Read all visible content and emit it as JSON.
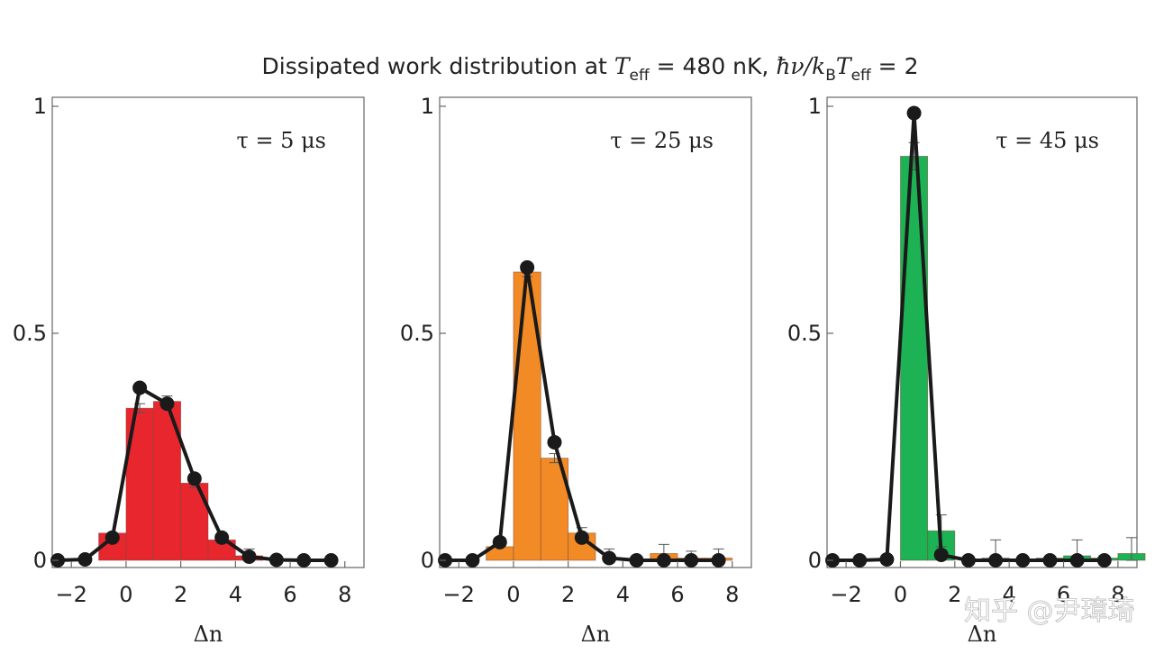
{
  "title": {
    "prefix": "Dissipated work distribution at ",
    "t_symbol": "T",
    "eff": "eff",
    "mid": " = 480 nK, ",
    "hbar_nu": "ħν/",
    "k_symbol": "k",
    "b_sub": "B",
    "t2_symbol": "T",
    "eff2": "eff",
    "suffix": " = 2"
  },
  "watermark": "知乎 @尹璋琦",
  "chart_data": [
    {
      "type": "bar",
      "panel_label": "τ = 5 μs",
      "bar_color": "#e8262e",
      "xlabel": "Δn",
      "xticks": [
        "−2",
        "0",
        "2",
        "4",
        "6",
        "8"
      ],
      "yticks": [
        "0",
        "0.5",
        "1"
      ],
      "xlim": [
        -2.7,
        8.7
      ],
      "ylim": [
        0,
        1
      ],
      "bars": [
        {
          "x": 0,
          "value": 0.06,
          "err": 0.0
        },
        {
          "x": 1,
          "value": 0.335,
          "err": 0.01
        },
        {
          "x": 2,
          "value": 0.35,
          "err": 0.012
        },
        {
          "x": 3,
          "value": 0.17,
          "err": 0.01
        },
        {
          "x": 4,
          "value": 0.045,
          "err": 0.008
        },
        {
          "x": 5,
          "value": 0.01,
          "err": 0.015
        },
        {
          "x": 6,
          "value": 0.0,
          "err": 0.0
        },
        {
          "x": 7,
          "value": 0.0,
          "err": 0.0
        },
        {
          "x": 8,
          "value": 0.0,
          "err": 0.0
        }
      ],
      "theory": {
        "x": [
          -2,
          -1,
          0,
          1,
          2,
          3,
          4,
          5,
          6,
          7,
          8
        ],
        "y": [
          0.0,
          0.002,
          0.05,
          0.38,
          0.345,
          0.18,
          0.05,
          0.008,
          0.001,
          0.0,
          0.0
        ]
      }
    },
    {
      "type": "bar",
      "panel_label": "τ = 25 μs",
      "bar_color": "#f28a25",
      "xlabel": "Δn",
      "xticks": [
        "−2",
        "0",
        "2",
        "4",
        "6",
        "8"
      ],
      "yticks": [
        "0",
        "0.5",
        "1"
      ],
      "xlim": [
        -2.7,
        8.7
      ],
      "ylim": [
        0,
        1
      ],
      "bars": [
        {
          "x": 0,
          "value": 0.03,
          "err": 0.0
        },
        {
          "x": 1,
          "value": 0.635,
          "err": 0.01
        },
        {
          "x": 2,
          "value": 0.225,
          "err": 0.01
        },
        {
          "x": 3,
          "value": 0.06,
          "err": 0.012
        },
        {
          "x": 4,
          "value": 0.0,
          "err": 0.025
        },
        {
          "x": 5,
          "value": 0.0,
          "err": 0.0
        },
        {
          "x": 6,
          "value": 0.015,
          "err": 0.02
        },
        {
          "x": 7,
          "value": 0.005,
          "err": 0.015
        },
        {
          "x": 8,
          "value": 0.005,
          "err": 0.02
        }
      ],
      "theory": {
        "x": [
          -2,
          -1,
          0,
          1,
          2,
          3,
          4,
          5,
          6,
          7,
          8
        ],
        "y": [
          0.0,
          0.0,
          0.04,
          0.645,
          0.26,
          0.05,
          0.005,
          0.0,
          0.0,
          0.0,
          0.0
        ]
      }
    },
    {
      "type": "bar",
      "panel_label": "τ = 45 μs",
      "bar_color": "#1db254",
      "xlabel": "Δn",
      "xticks": [
        "−2",
        "0",
        "2",
        "4",
        "6",
        "8"
      ],
      "yticks": [
        "0",
        "0.5",
        "1"
      ],
      "xlim": [
        -2.7,
        8.7
      ],
      "ylim": [
        0,
        1
      ],
      "bars": [
        {
          "x": 1,
          "value": 0.89,
          "err": 0.03
        },
        {
          "x": 2,
          "value": 0.065,
          "err": 0.035
        },
        {
          "x": 3,
          "value": 0.0,
          "err": 0.0
        },
        {
          "x": 4,
          "value": 0.005,
          "err": 0.04
        },
        {
          "x": 5,
          "value": 0.0,
          "err": 0.0
        },
        {
          "x": 6,
          "value": 0.005,
          "err": 0.0
        },
        {
          "x": 7,
          "value": 0.01,
          "err": 0.035
        },
        {
          "x": 8,
          "value": 0.005,
          "err": 0.0
        },
        {
          "x": 9,
          "value": 0.015,
          "err": 0.035
        }
      ],
      "theory": {
        "x": [
          -2,
          -1,
          0,
          1,
          2,
          3,
          4,
          5,
          6,
          7,
          8
        ],
        "y": [
          0.0,
          0.0,
          0.002,
          0.985,
          0.012,
          0.0,
          0.0,
          0.0,
          0.0,
          0.0,
          0.0
        ]
      }
    }
  ]
}
